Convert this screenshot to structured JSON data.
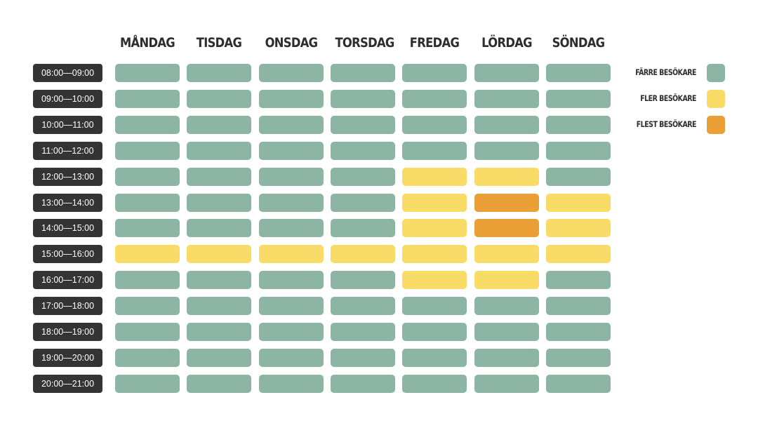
{
  "chart_data": {
    "type": "heatmap",
    "days": [
      "MÅNDAG",
      "TISDAG",
      "ONSDAG",
      "TORSDAG",
      "FREDAG",
      "LÖRDAG",
      "SÖNDAG"
    ],
    "times": [
      "08:00—09:00",
      "09:00—10:00",
      "10:00—11:00",
      "11:00—12:00",
      "12:00—13:00",
      "13:00—14:00",
      "14:00—15:00",
      "15:00—16:00",
      "16:00—17:00",
      "17:00—18:00",
      "18:00—19:00",
      "19:00—20:00",
      "20:00—21:00"
    ],
    "levels": [
      {
        "label": "FÄRRE BESÖKARE",
        "color": "#8db5a3"
      },
      {
        "label": "FLER BESÖKARE",
        "color": "#f8dc67"
      },
      {
        "label": "FLEST BESÖKARE",
        "color": "#eaa036"
      }
    ],
    "values": [
      [
        0,
        0,
        0,
        0,
        0,
        0,
        0
      ],
      [
        0,
        0,
        0,
        0,
        0,
        0,
        0
      ],
      [
        0,
        0,
        0,
        0,
        0,
        0,
        0
      ],
      [
        0,
        0,
        0,
        0,
        0,
        0,
        0
      ],
      [
        0,
        0,
        0,
        0,
        1,
        1,
        0
      ],
      [
        0,
        0,
        0,
        0,
        1,
        2,
        1
      ],
      [
        0,
        0,
        0,
        0,
        1,
        2,
        1
      ],
      [
        1,
        1,
        1,
        1,
        1,
        1,
        1
      ],
      [
        0,
        0,
        0,
        0,
        1,
        1,
        0
      ],
      [
        0,
        0,
        0,
        0,
        0,
        0,
        0
      ],
      [
        0,
        0,
        0,
        0,
        0,
        0,
        0
      ],
      [
        0,
        0,
        0,
        0,
        0,
        0,
        0
      ],
      [
        0,
        0,
        0,
        0,
        0,
        0,
        0
      ]
    ]
  }
}
